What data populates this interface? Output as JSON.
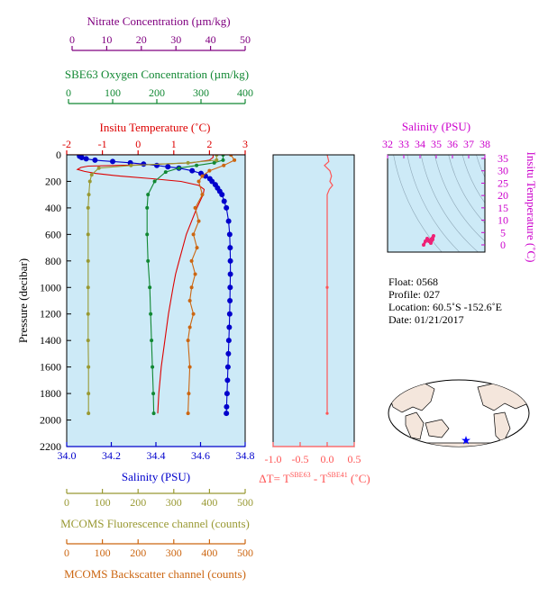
{
  "colors": {
    "nitrate": "#800080",
    "oxygen": "#118833",
    "temperature": "#dd0000",
    "salinity": "#0000cc",
    "fluorescence": "#999933",
    "backscatter": "#cc6611",
    "delta": "#ff5555",
    "ts_axis": "#cc00cc",
    "ts_data": "#ee2277",
    "panel_bg": "#cdeaf7",
    "land": "#f4e6dc",
    "ocean": "#ffffff",
    "float_marker": "#0000ff"
  },
  "top_axes": {
    "nitrate": {
      "title": "Nitrate Concentration (µm/kg)",
      "ticks": [
        "0",
        "10",
        "20",
        "30",
        "40",
        "50"
      ]
    },
    "oxygen": {
      "title": "SBE63 Oxygen Concentration (µm/kg)",
      "ticks": [
        "0",
        "100",
        "200",
        "300",
        "400"
      ]
    },
    "temperature": {
      "title": "Insitu Temperature (˚C)",
      "ticks": [
        "-2",
        "-1",
        "0",
        "1",
        "2",
        "3"
      ]
    }
  },
  "left_axis": {
    "title": "Pressure (decibar)",
    "ticks": [
      "0",
      "200",
      "400",
      "600",
      "800",
      "1000",
      "1200",
      "1400",
      "1600",
      "1800",
      "2000",
      "2200"
    ]
  },
  "bottom_axes": {
    "salinity": {
      "title": "Salinity (PSU)",
      "ticks": [
        "34.0",
        "34.2",
        "34.4",
        "34.6",
        "34.8"
      ]
    },
    "fluorescence": {
      "title": "MCOMS Fluorescence channel (counts)",
      "ticks": [
        "0",
        "100",
        "200",
        "300",
        "400",
        "500"
      ]
    },
    "backscatter": {
      "title": "MCOMS Backscatter channel (counts)",
      "ticks": [
        "0",
        "100",
        "200",
        "300",
        "400",
        "500"
      ]
    }
  },
  "delta_panel": {
    "title_prefix": "ΔT= T",
    "sup1": "SBE63",
    "title_mid": " - T",
    "sup2": "SBE41",
    "title_suffix": " (˚C)",
    "ticks": [
      "-1.0",
      "-0.5",
      "0.0",
      "0.5"
    ]
  },
  "ts_panel": {
    "top_title": "Salinity (PSU)",
    "top_ticks": [
      "32",
      "33",
      "34",
      "35",
      "36",
      "37",
      "38"
    ],
    "right_title": "Insitu Temperature (˚C)",
    "right_ticks": [
      "35",
      "30",
      "25",
      "20",
      "15",
      "10",
      "5",
      "0"
    ]
  },
  "info": {
    "float": "Float:  0568",
    "profile": "Profile:  027",
    "location": "Location:  60.5˚S  -152.6˚E",
    "date": "Date:  01/21/2017"
  },
  "chart_data": {
    "type": "line",
    "y_axis": {
      "label": "Pressure (decibar)",
      "range": [
        0,
        2200
      ],
      "inverted": true
    },
    "series": [
      {
        "name": "Salinity (PSU)",
        "x_range": [
          34.0,
          34.8
        ],
        "points": [
          {
            "p": 0,
            "x": 34.05
          },
          {
            "p": 10,
            "x": 34.05
          },
          {
            "p": 20,
            "x": 34.06
          },
          {
            "p": 30,
            "x": 34.08
          },
          {
            "p": 40,
            "x": 34.12
          },
          {
            "p": 50,
            "x": 34.2
          },
          {
            "p": 60,
            "x": 34.28
          },
          {
            "p": 70,
            "x": 34.34
          },
          {
            "p": 80,
            "x": 34.4
          },
          {
            "p": 90,
            "x": 34.45
          },
          {
            "p": 100,
            "x": 34.5
          },
          {
            "p": 120,
            "x": 34.56
          },
          {
            "p": 140,
            "x": 34.6
          },
          {
            "p": 160,
            "x": 34.62
          },
          {
            "p": 180,
            "x": 34.64
          },
          {
            "p": 200,
            "x": 34.65
          },
          {
            "p": 225,
            "x": 34.665
          },
          {
            "p": 250,
            "x": 34.675
          },
          {
            "p": 275,
            "x": 34.685
          },
          {
            "p": 300,
            "x": 34.695
          },
          {
            "p": 350,
            "x": 34.705
          },
          {
            "p": 400,
            "x": 34.715
          },
          {
            "p": 500,
            "x": 34.725
          },
          {
            "p": 600,
            "x": 34.73
          },
          {
            "p": 700,
            "x": 34.732
          },
          {
            "p": 800,
            "x": 34.733
          },
          {
            "p": 900,
            "x": 34.733
          },
          {
            "p": 1000,
            "x": 34.732
          },
          {
            "p": 1100,
            "x": 34.731
          },
          {
            "p": 1200,
            "x": 34.73
          },
          {
            "p": 1300,
            "x": 34.728
          },
          {
            "p": 1400,
            "x": 34.726
          },
          {
            "p": 1500,
            "x": 34.724
          },
          {
            "p": 1600,
            "x": 34.722
          },
          {
            "p": 1700,
            "x": 34.72
          },
          {
            "p": 1800,
            "x": 34.718
          },
          {
            "p": 1900,
            "x": 34.716
          },
          {
            "p": 1950,
            "x": 34.715
          }
        ]
      },
      {
        "name": "Insitu Temperature (˚C)",
        "x_range": [
          -2,
          3
        ],
        "points": [
          {
            "p": 0,
            "x": 2.1
          },
          {
            "p": 20,
            "x": 2.1
          },
          {
            "p": 40,
            "x": 2.0
          },
          {
            "p": 60,
            "x": 1.5
          },
          {
            "p": 75,
            "x": 0.2
          },
          {
            "p": 85,
            "x": -1.4
          },
          {
            "p": 95,
            "x": -1.6
          },
          {
            "p": 110,
            "x": -1.7
          },
          {
            "p": 125,
            "x": -1.5
          },
          {
            "p": 140,
            "x": -1.2
          },
          {
            "p": 160,
            "x": -0.5
          },
          {
            "p": 180,
            "x": 0.4
          },
          {
            "p": 200,
            "x": 1.2
          },
          {
            "p": 230,
            "x": 1.7
          },
          {
            "p": 260,
            "x": 1.85
          },
          {
            "p": 300,
            "x": 1.82
          },
          {
            "p": 400,
            "x": 1.65
          },
          {
            "p": 500,
            "x": 1.5
          },
          {
            "p": 600,
            "x": 1.35
          },
          {
            "p": 700,
            "x": 1.25
          },
          {
            "p": 800,
            "x": 1.15
          },
          {
            "p": 900,
            "x": 1.05
          },
          {
            "p": 1000,
            "x": 0.98
          },
          {
            "p": 1200,
            "x": 0.85
          },
          {
            "p": 1400,
            "x": 0.75
          },
          {
            "p": 1600,
            "x": 0.65
          },
          {
            "p": 1800,
            "x": 0.58
          },
          {
            "p": 1950,
            "x": 0.55
          }
        ]
      },
      {
        "name": "SBE63 Oxygen Concentration (µm/kg)",
        "x_range": [
          0,
          400
        ],
        "points": [
          {
            "p": 0,
            "x": 350
          },
          {
            "p": 40,
            "x": 350
          },
          {
            "p": 60,
            "x": 330
          },
          {
            "p": 80,
            "x": 290
          },
          {
            "p": 100,
            "x": 250
          },
          {
            "p": 130,
            "x": 220
          },
          {
            "p": 200,
            "x": 195
          },
          {
            "p": 300,
            "x": 180
          },
          {
            "p": 400,
            "x": 178
          },
          {
            "p": 600,
            "x": 178
          },
          {
            "p": 800,
            "x": 180
          },
          {
            "p": 1000,
            "x": 184
          },
          {
            "p": 1200,
            "x": 186
          },
          {
            "p": 1400,
            "x": 188
          },
          {
            "p": 1600,
            "x": 190
          },
          {
            "p": 1800,
            "x": 192
          },
          {
            "p": 1950,
            "x": 193
          }
        ]
      },
      {
        "name": "MCOMS Fluorescence channel (counts)",
        "x_range": [
          0,
          500
        ],
        "points": [
          {
            "p": 0,
            "x": 420
          },
          {
            "p": 40,
            "x": 420
          },
          {
            "p": 60,
            "x": 340
          },
          {
            "p": 80,
            "x": 180
          },
          {
            "p": 100,
            "x": 90
          },
          {
            "p": 150,
            "x": 70
          },
          {
            "p": 200,
            "x": 65
          },
          {
            "p": 300,
            "x": 62
          },
          {
            "p": 400,
            "x": 60
          },
          {
            "p": 600,
            "x": 60
          },
          {
            "p": 800,
            "x": 60
          },
          {
            "p": 1000,
            "x": 60
          },
          {
            "p": 1200,
            "x": 60
          },
          {
            "p": 1400,
            "x": 60
          },
          {
            "p": 1600,
            "x": 61
          },
          {
            "p": 1800,
            "x": 61
          },
          {
            "p": 1950,
            "x": 61
          }
        ]
      },
      {
        "name": "MCOMS Backscatter channel (counts)",
        "x_range": [
          0,
          500
        ],
        "points": [
          {
            "p": 0,
            "x": 460
          },
          {
            "p": 40,
            "x": 470
          },
          {
            "p": 80,
            "x": 440
          },
          {
            "p": 120,
            "x": 400
          },
          {
            "p": 160,
            "x": 380
          },
          {
            "p": 200,
            "x": 370
          },
          {
            "p": 300,
            "x": 380
          },
          {
            "p": 400,
            "x": 360
          },
          {
            "p": 500,
            "x": 370
          },
          {
            "p": 600,
            "x": 355
          },
          {
            "p": 700,
            "x": 365
          },
          {
            "p": 800,
            "x": 350
          },
          {
            "p": 900,
            "x": 360
          },
          {
            "p": 1000,
            "x": 350
          },
          {
            "p": 1100,
            "x": 345
          },
          {
            "p": 1200,
            "x": 355
          },
          {
            "p": 1300,
            "x": 345
          },
          {
            "p": 1400,
            "x": 340
          },
          {
            "p": 1600,
            "x": 345
          },
          {
            "p": 1800,
            "x": 342
          },
          {
            "p": 1950,
            "x": 340
          }
        ]
      },
      {
        "name": "ΔT (˚C)",
        "x_range": [
          -1.0,
          0.5
        ],
        "points": [
          {
            "p": 0,
            "x": 0.0
          },
          {
            "p": 50,
            "x": 0.03
          },
          {
            "p": 80,
            "x": -0.05
          },
          {
            "p": 120,
            "x": 0.05
          },
          {
            "p": 160,
            "x": 0.08
          },
          {
            "p": 200,
            "x": 0.05
          },
          {
            "p": 230,
            "x": 0.1
          },
          {
            "p": 260,
            "x": 0.04
          },
          {
            "p": 300,
            "x": 0.0
          },
          {
            "p": 1000,
            "x": 0.0
          },
          {
            "p": 1950,
            "x": 0.0
          }
        ]
      }
    ]
  }
}
